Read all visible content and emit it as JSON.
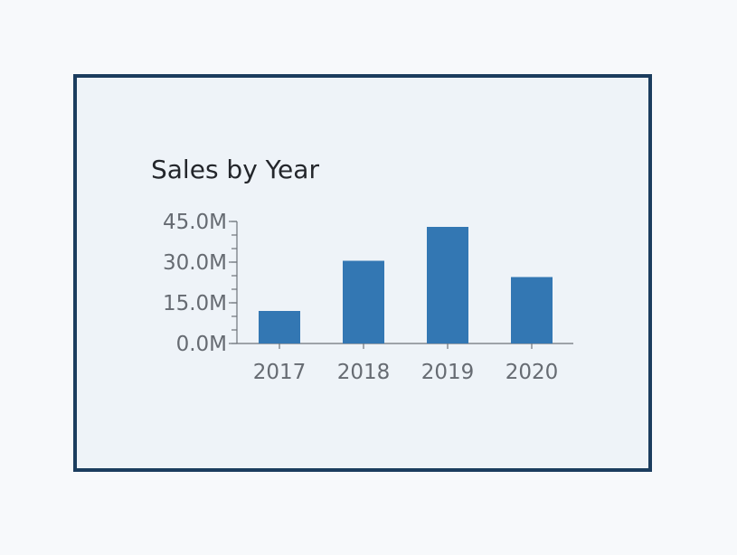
{
  "chart_data": {
    "type": "bar",
    "title": "Sales by Year",
    "xlabel": "",
    "ylabel": "",
    "categories": [
      "2017",
      "2018",
      "2019",
      "2020"
    ],
    "values": [
      12000000,
      30500000,
      43000000,
      24500000
    ],
    "ylim": [
      0,
      45000000
    ],
    "yticks": [
      0,
      15000000,
      30000000,
      45000000
    ],
    "ytick_labels": [
      "0.0M",
      "15.0M",
      "30.0M",
      "45.0M"
    ],
    "minor_tick_step": 5000000,
    "bar_color": "#3377b3",
    "grid": false,
    "legend": "none"
  },
  "colors": {
    "card_border": "#1b3d5e",
    "card_background": "#eef3f8",
    "page_background": "#f7f9fb"
  }
}
